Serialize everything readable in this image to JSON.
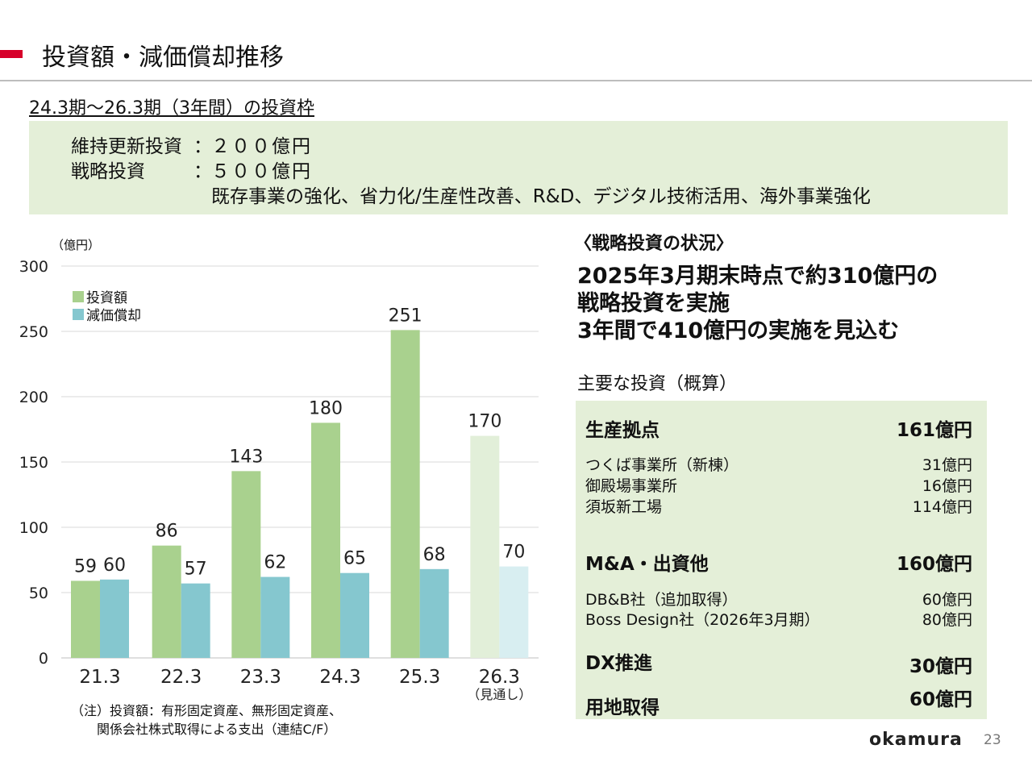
{
  "header": {
    "title": "投資額・減価償却推移",
    "accent": "#d7002a"
  },
  "framework": {
    "heading": "24.3期～26.3期（3年間）の投資枠",
    "maintenance": {
      "label": "維持更新投資",
      "sep": "：",
      "amount": "２００億円"
    },
    "strategic": {
      "label": "戦略投資",
      "sep": "：",
      "amount": "５００億円"
    },
    "areas": "既存事業の強化、省力化/生産性改善、R&D、デジタル技術活用、海外事業強化"
  },
  "chart_data": {
    "type": "bar",
    "unit_label": "（億円）",
    "categories": [
      "21.3",
      "22.3",
      "23.3",
      "24.3",
      "25.3",
      "26.3"
    ],
    "category_note": {
      "index": 5,
      "text": "（見通し）"
    },
    "ylim": [
      0,
      300
    ],
    "yticks": [
      0,
      50,
      100,
      150,
      200,
      250,
      300
    ],
    "grid": true,
    "legend_position": "top-left",
    "series": [
      {
        "name": "投資額",
        "values": [
          59,
          86,
          143,
          180,
          251,
          170
        ],
        "color": "#a9d18e",
        "forecast_color": "#e2efd9"
      },
      {
        "name": "減価償却",
        "values": [
          60,
          57,
          62,
          65,
          68,
          70
        ],
        "color": "#85c7cf",
        "forecast_color": "#d8eef1"
      }
    ]
  },
  "notes": [
    "（注）投資額：有形固定資産、無形固定資産、",
    "　　関係会社株式取得による支出（連結C/F）"
  ],
  "status": {
    "heading": "〈戦略投資の状況〉",
    "lines": [
      "2025年3月期末時点で約310億円の",
      "戦略投資を実施",
      "3年間で410億円の実施を見込む"
    ]
  },
  "investments": {
    "heading": "主要な投資（概算）",
    "cat1": {
      "label": "生産拠点",
      "value": "161億円"
    },
    "cat1_items": [
      {
        "label": "つくば事業所（新棟）",
        "value": "31億円"
      },
      {
        "label": "御殿場事業所",
        "value": "16億円"
      },
      {
        "label": "須坂新工場",
        "value": "114億円"
      }
    ],
    "cat2": {
      "label": "M&A・出資他",
      "value": "160億円"
    },
    "cat2_items": [
      {
        "label": "DB&B社（追加取得）",
        "value": "60億円"
      },
      {
        "label": "Boss Design社（2026年3月期）",
        "value": "80億円"
      }
    ],
    "cat3": {
      "label": "DX推進",
      "value": "30億円"
    },
    "cat4": {
      "label": "用地取得",
      "value": "60億円"
    }
  },
  "footer": {
    "logo": "okamura",
    "page": "23"
  }
}
